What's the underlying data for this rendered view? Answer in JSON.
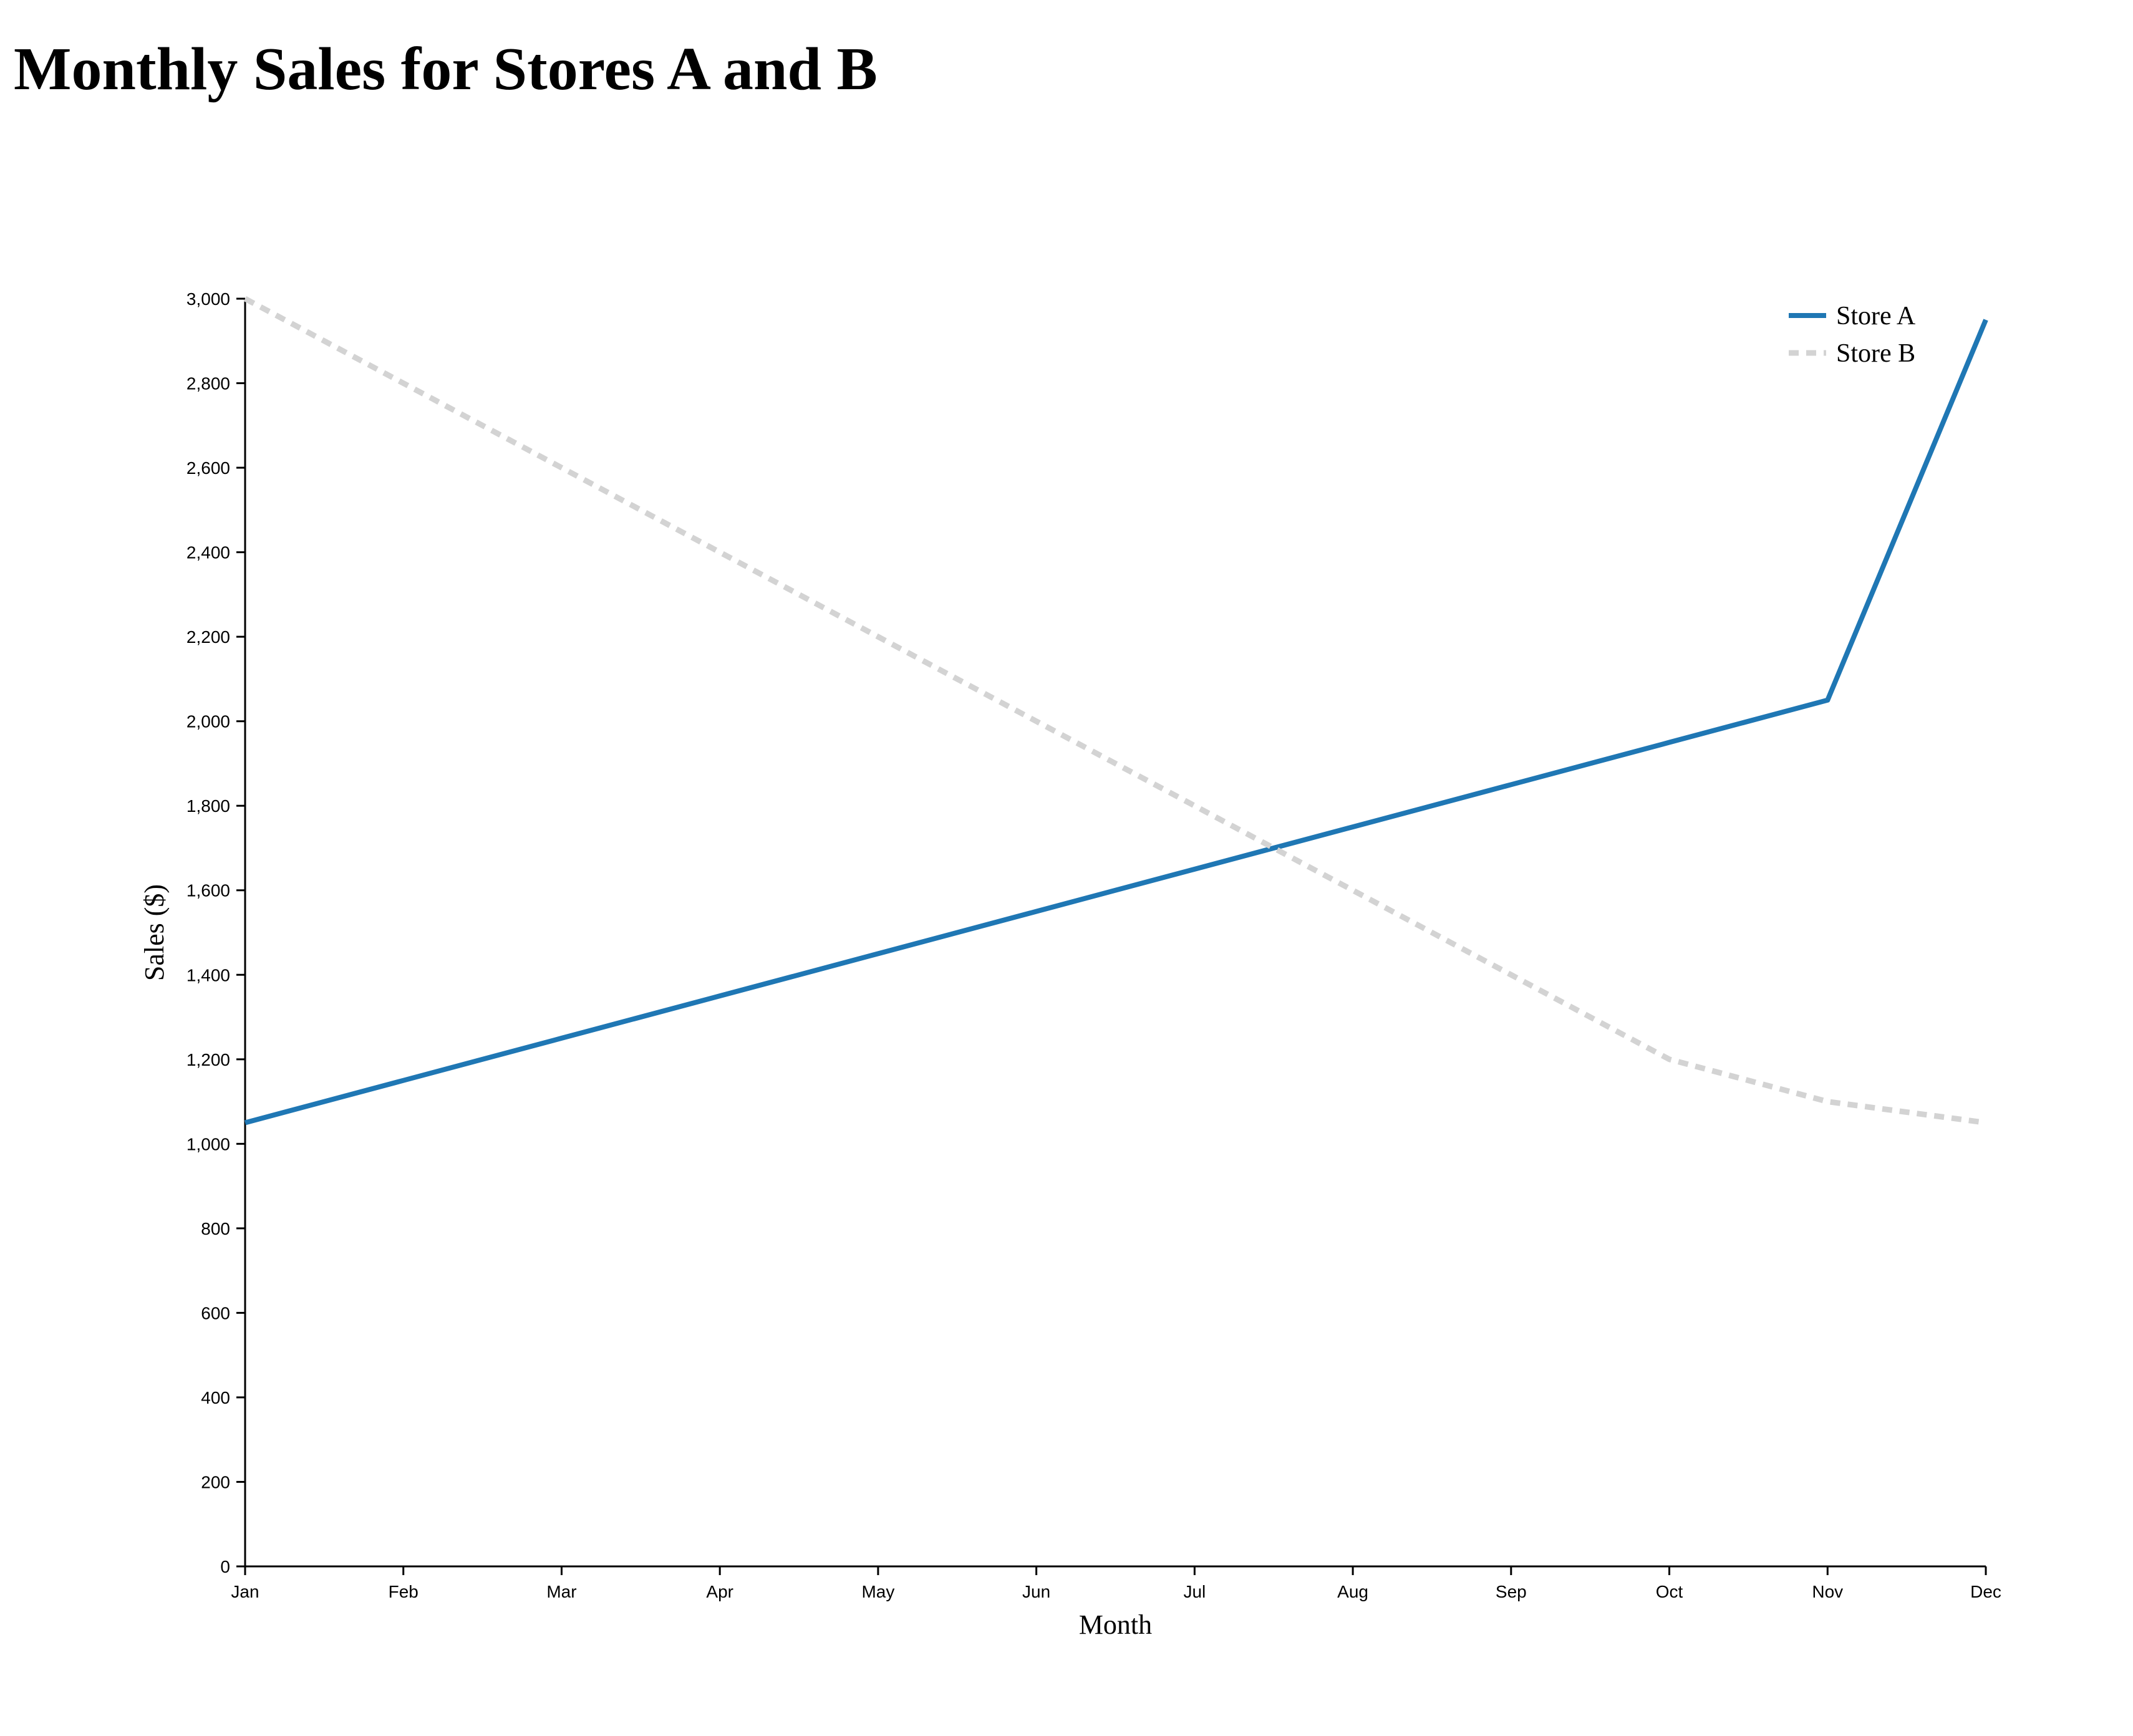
{
  "chart_data": {
    "type": "line",
    "title": "Monthly Sales for Stores A and B",
    "xlabel": "Month",
    "ylabel": "Sales ($)",
    "categories": [
      "Jan",
      "Feb",
      "Mar",
      "Apr",
      "May",
      "Jun",
      "Jul",
      "Aug",
      "Sep",
      "Oct",
      "Nov",
      "Dec"
    ],
    "ylim": [
      0,
      3000
    ],
    "yticks": [
      0,
      200,
      400,
      600,
      800,
      1000,
      1200,
      1400,
      1600,
      1800,
      2000,
      2200,
      2400,
      2600,
      2800,
      3000
    ],
    "ytick_labels": [
      "0",
      "200",
      "400",
      "600",
      "800",
      "1,000",
      "1,200",
      "1,400",
      "1,600",
      "1,800",
      "2,000",
      "2,200",
      "2,400",
      "2,600",
      "2,800",
      "3,000"
    ],
    "grid": false,
    "legend_position": "top-right",
    "series": [
      {
        "name": "Store A",
        "values": [
          1050,
          1150,
          1250,
          1350,
          1450,
          1550,
          1650,
          1750,
          1850,
          1950,
          2050,
          2950
        ],
        "color": "#1f77b4",
        "style": "solid"
      },
      {
        "name": "Store B",
        "values": [
          3000,
          2800,
          2600,
          2400,
          2200,
          2000,
          1800,
          1600,
          1400,
          1200,
          1100,
          1050
        ],
        "color": "#d3d3d3",
        "style": "dashed"
      }
    ]
  }
}
